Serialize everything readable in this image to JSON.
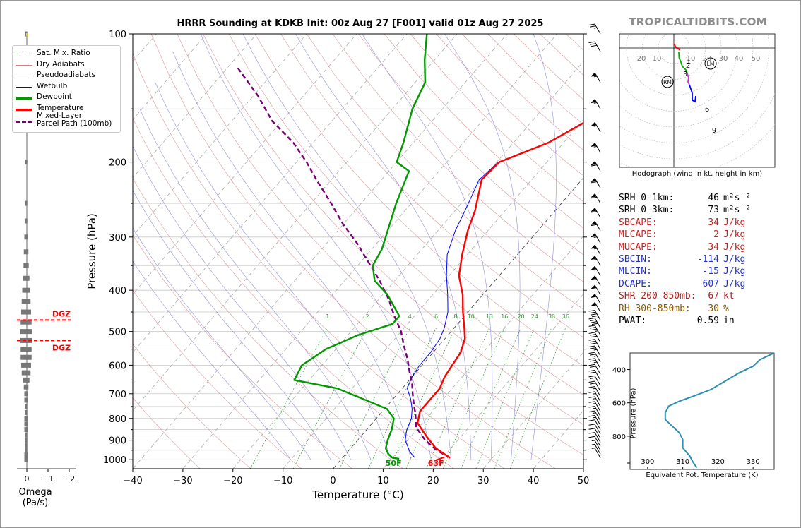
{
  "title": "HRRR Sounding at KDKB Init: 00z Aug 27 [F001] valid 01z Aug 27 2025",
  "brand": "TROPICALTIDBITS.COM",
  "colors": {
    "temperature": "#ff0000",
    "dewpoint": "#009900",
    "wetbulb": "#0000ff",
    "parcel": "#770077",
    "dry_adiabat": "#d08080",
    "moist_adiabat": "#8080d0",
    "mixing_ratio": "#339933",
    "thetae": "#2a8fb0"
  },
  "chart_data": [
    {
      "type": "line",
      "name": "skew-t",
      "xlabel": "Temperature (°C)",
      "ylabel": "Pressure (hPa)",
      "xlim": [
        -40,
        50
      ],
      "ylim": [
        1050,
        100
      ],
      "y_scale": "log",
      "x_ticks": [
        "−40",
        "−30",
        "−20",
        "−10",
        "0",
        "10",
        "20",
        "30",
        "40",
        "50"
      ],
      "y_ticks": [
        "100",
        "200",
        "300",
        "400",
        "500",
        "600",
        "700",
        "800",
        "900",
        "1000"
      ],
      "grid": true,
      "mixing_ratio_labels": [
        "1",
        "2",
        "4",
        "6",
        "8",
        "10",
        "13",
        "16",
        "20",
        "24",
        "30",
        "36"
      ],
      "series": [
        {
          "name": "Temperature",
          "points": [
            [
              21.5,
              990
            ],
            [
              17,
              940
            ],
            [
              13,
              880
            ],
            [
              9,
              820
            ],
            [
              7.5,
              770
            ],
            [
              7.5,
              720
            ],
            [
              7.5,
              680
            ],
            [
              6.5,
              640
            ],
            [
              6,
              600
            ],
            [
              5.5,
              560
            ],
            [
              4,
              520
            ],
            [
              2,
              490
            ],
            [
              -1,
              450
            ],
            [
              -4,
              410
            ],
            [
              -8,
              370
            ],
            [
              -11,
              330
            ],
            [
              -14,
              290
            ],
            [
              -16,
              260
            ],
            [
              -20,
              220
            ],
            [
              -19.5,
              200
            ],
            [
              -13,
              180
            ],
            [
              -9,
              160
            ],
            [
              -8,
              140
            ],
            [
              -6,
              120
            ],
            [
              -4,
              100
            ]
          ]
        },
        {
          "name": "Dewpoint",
          "points": [
            [
              11.5,
              995
            ],
            [
              10,
              990
            ],
            [
              8.5,
              970
            ],
            [
              7,
              940
            ],
            [
              6,
              900
            ],
            [
              5,
              850
            ],
            [
              3.5,
              800
            ],
            [
              0.5,
              760
            ],
            [
              -6,
              720
            ],
            [
              -13,
              680
            ],
            [
              -23,
              650
            ],
            [
              -24,
              600
            ],
            [
              -22,
              550
            ],
            [
              -18,
              510
            ],
            [
              -13,
              480
            ],
            [
              -13,
              460
            ],
            [
              -19,
              410
            ],
            [
              -24,
              380
            ],
            [
              -27,
              350
            ],
            [
              -28,
              320
            ],
            [
              -30,
              290
            ],
            [
              -33,
              250
            ],
            [
              -36,
              210
            ],
            [
              -40,
              200
            ],
            [
              -42,
              180
            ],
            [
              -46,
              150
            ],
            [
              -48,
              130
            ],
            [
              -52,
              115
            ],
            [
              -56,
              100
            ]
          ]
        },
        {
          "name": "Wetbulb",
          "points": [
            [
              14.5,
              990
            ],
            [
              12.5,
              960
            ],
            [
              9.5,
              900
            ],
            [
              8,
              850
            ],
            [
              7,
              800
            ],
            [
              5.5,
              760
            ],
            [
              3.5,
              720
            ],
            [
              1,
              680
            ],
            [
              0,
              640
            ],
            [
              -0.5,
              600
            ],
            [
              -0.5,
              560
            ],
            [
              -1,
              520
            ],
            [
              -2,
              490
            ],
            [
              -4,
              450
            ],
            [
              -7,
              410
            ],
            [
              -10.5,
              370
            ],
            [
              -14,
              330
            ],
            [
              -16.5,
              290
            ],
            [
              -18,
              260
            ],
            [
              -20.5,
              220
            ],
            [
              -19.7,
              200
            ],
            [
              -13.2,
              180
            ],
            [
              -9.2,
              160
            ],
            [
              -8.2,
              140
            ],
            [
              -6.5,
              120
            ],
            [
              -4.5,
              100
            ]
          ]
        },
        {
          "name": "Mixed-Layer Parcel Path (100mb)",
          "points": [
            [
              21.5,
              990
            ],
            [
              17.5,
              950
            ],
            [
              13.5,
              900
            ],
            [
              9.5,
              840
            ],
            [
              7,
              780
            ],
            [
              5,
              740
            ],
            [
              3,
              700
            ],
            [
              1,
              660
            ],
            [
              -1.5,
              620
            ],
            [
              -4,
              580
            ],
            [
              -7,
              540
            ],
            [
              -10,
              500
            ],
            [
              -14,
              460
            ],
            [
              -18,
              420
            ],
            [
              -23,
              380
            ],
            [
              -29,
              340
            ],
            [
              -34,
              310
            ],
            [
              -40,
              280
            ],
            [
              -46,
              250
            ],
            [
              -53,
              220
            ],
            [
              -58,
              200
            ],
            [
              -64,
              180
            ],
            [
              -72,
              160
            ],
            [
              -79,
              140
            ],
            [
              -88,
              120
            ]
          ]
        }
      ],
      "surface_labels": {
        "temperature": "63F",
        "dewpoint": "50F"
      },
      "dgz": {
        "label_top": "DGZ",
        "label_bottom": "DGZ",
        "pressure_top": 470,
        "pressure_bottom": 525
      }
    },
    {
      "type": "bar",
      "name": "omega",
      "xlabel": "Omega (Pa/s)",
      "x_ticks": [
        "0",
        "−1",
        "−2"
      ],
      "xlim": [
        0.5,
        -3.0
      ],
      "levels": [
        100,
        200,
        250,
        275,
        300,
        325,
        350,
        375,
        400,
        425,
        450,
        475,
        500,
        525,
        550,
        575,
        600,
        625,
        650,
        675,
        700,
        725,
        750,
        775,
        800,
        825,
        850,
        875,
        900,
        925,
        950,
        975,
        1000
      ],
      "values": [
        0.0,
        0.0,
        0.0,
        0.05,
        0.1,
        0.15,
        0.18,
        0.25,
        0.3,
        0.35,
        0.4,
        0.45,
        0.5,
        0.5,
        0.45,
        0.45,
        0.4,
        0.35,
        0.25,
        0.15,
        0.1,
        0.1,
        0.05,
        0.05,
        0.1,
        0.1,
        0.1,
        0.05,
        0.05,
        0.05,
        0.05,
        0.1,
        0.1
      ]
    },
    {
      "type": "line",
      "name": "hodograph",
      "caption": "Hodograph (wind in kt, height in km)",
      "ring_labels": [
        "20",
        "10",
        "10",
        "20",
        "30",
        "40",
        "50"
      ],
      "height_labels": [
        "1",
        "2",
        "3",
        "6",
        "9"
      ],
      "markers": {
        "RM": "RM",
        "LM": "LM"
      },
      "series": [
        {
          "name": "0-3km",
          "color": "#ff0000",
          "points": [
            [
              1,
              58
            ],
            [
              2,
              62
            ],
            [
              4,
              64
            ],
            [
              6,
              64
            ],
            [
              8,
              67
            ]
          ]
        },
        {
          "name": "3-6km",
          "color": "#00aa00",
          "points": [
            [
              7,
              70
            ],
            [
              7.5,
              78
            ],
            [
              10,
              84
            ],
            [
              12,
              90
            ],
            [
              17,
              95
            ],
            [
              19,
              100
            ]
          ]
        },
        {
          "name": "6-9km",
          "color": "#cc33cc",
          "points": [
            [
              19,
              100
            ],
            [
              21,
              106
            ],
            [
              20,
              112
            ],
            [
              22,
              116
            ]
          ]
        },
        {
          "name": "9-12km",
          "color": "#0000ff",
          "points": [
            [
              22,
              116
            ],
            [
              24,
              122
            ],
            [
              26,
              128
            ],
            [
              26,
              138
            ],
            [
              30,
              140
            ],
            [
              31,
              132
            ]
          ]
        }
      ]
    },
    {
      "type": "line",
      "name": "theta-e profile",
      "xlabel": "Equivalent Pot. Temperature (K)",
      "ylabel": "Pressure (hPa)",
      "x_ticks": [
        "300",
        "310",
        "320",
        "330"
      ],
      "y_ticks": [
        "400",
        "600",
        "800"
      ],
      "xlim": [
        295,
        336
      ],
      "ylim": [
        1000,
        300
      ],
      "series": [
        {
          "name": "Theta-e",
          "points": [
            [
              336,
              300
            ],
            [
              332,
              340
            ],
            [
              330,
              380
            ],
            [
              326,
              420
            ],
            [
              322,
              470
            ],
            [
              318,
              520
            ],
            [
              313,
              560
            ],
            [
              309,
              590
            ],
            [
              306,
              620
            ],
            [
              305,
              660
            ],
            [
              305,
              700
            ],
            [
              307,
              740
            ],
            [
              309,
              780
            ],
            [
              310,
              820
            ],
            [
              310,
              870
            ],
            [
              312,
              920
            ],
            [
              313,
              960
            ],
            [
              314,
              990
            ]
          ]
        }
      ]
    }
  ],
  "legend": [
    {
      "label": "Sat. Mix. Ratio",
      "color": "#339933",
      "style": "dotted"
    },
    {
      "label": "Dry Adiabats",
      "color": "#d08080",
      "style": "solid-thin"
    },
    {
      "label": "Pseudoadiabats",
      "color": "#8080d0",
      "style": "solid-thin"
    },
    {
      "label": "Wetbulb",
      "color": "#0000ff",
      "style": "solid"
    },
    {
      "label": "Dewpoint",
      "color": "#009900",
      "style": "thick"
    },
    {
      "label": "Temperature",
      "color": "#ff0000",
      "style": "thick"
    },
    {
      "label": "Mixed-Layer\nParcel Path (100mb)",
      "color": "#770077",
      "style": "dashed"
    }
  ],
  "stats": [
    {
      "label": "SRH 0-1km:",
      "value": "46",
      "unit": "m²s⁻²",
      "color": "#000000"
    },
    {
      "label": "SRH 0-3km:",
      "value": "73",
      "unit": "m²s⁻²",
      "color": "#000000"
    },
    {
      "label": "SBCAPE:",
      "value": "34",
      "unit": "J/kg",
      "color": "#cc2222"
    },
    {
      "label": "MLCAPE:",
      "value": "2",
      "unit": "J/kg",
      "color": "#cc2222"
    },
    {
      "label": "MUCAPE:",
      "value": "34",
      "unit": "J/kg",
      "color": "#cc2222"
    },
    {
      "label": "SBCIN:",
      "value": "-114",
      "unit": "J/kg",
      "color": "#2233cc"
    },
    {
      "label": "MLCIN:",
      "value": "-15",
      "unit": "J/kg",
      "color": "#2233cc"
    },
    {
      "label": "DCAPE:",
      "value": "607",
      "unit": "J/kg",
      "color": "#2233cc"
    },
    {
      "label": "SHR 200-850mb:",
      "value": "67",
      "unit": "kt",
      "color": "#aa2222"
    },
    {
      "label": "RH 300-850mb:",
      "value": "30",
      "unit": "%",
      "color": "#8a5a00"
    },
    {
      "label": "PWAT:",
      "value": "0.59",
      "unit": "in",
      "color": "#000000"
    }
  ],
  "wind_barbs": {
    "levels": [
      100,
      110,
      130,
      150,
      170,
      190,
      210,
      230,
      250,
      270,
      290,
      310,
      330,
      350,
      370,
      390,
      410,
      430,
      450,
      470,
      490,
      510,
      530,
      550,
      570,
      590,
      610,
      630,
      650,
      670,
      690,
      710,
      730,
      750,
      770,
      790,
      810,
      830,
      850,
      870,
      890,
      910,
      930,
      950,
      970,
      990
    ],
    "speeds_kt": [
      25,
      30,
      55,
      55,
      55,
      55,
      60,
      60,
      60,
      60,
      60,
      55,
      55,
      55,
      55,
      55,
      50,
      50,
      50,
      45,
      40,
      35,
      30,
      30,
      25,
      25,
      25,
      20,
      20,
      20,
      20,
      15,
      15,
      15,
      15,
      15,
      15,
      15,
      10,
      10,
      10,
      10,
      10,
      5,
      5,
      5
    ]
  }
}
